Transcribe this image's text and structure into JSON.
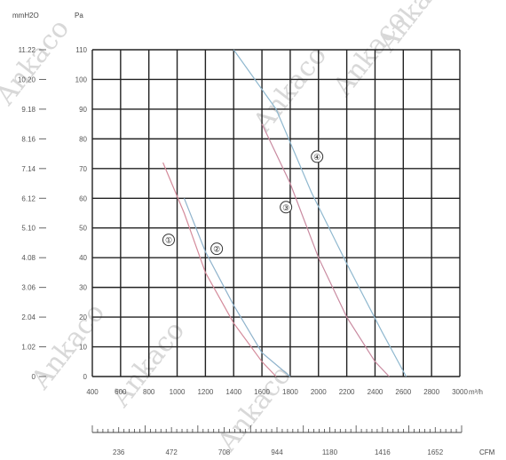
{
  "chart_data": {
    "type": "line",
    "left_axis_unit": "mmH2O",
    "left_axis_ticks": [
      "0",
      "1.02",
      "2.04",
      "3.06",
      "4.08",
      "5.10",
      "6.12",
      "7.14",
      "8.16",
      "9.18",
      "10.20",
      "11.22"
    ],
    "right_axis_unit": "Pa",
    "y_ticks": [
      0,
      10,
      20,
      30,
      40,
      50,
      60,
      70,
      80,
      90,
      100,
      110
    ],
    "ylim": [
      0,
      110
    ],
    "x_unit": "m³/h",
    "x_ticks": [
      400,
      600,
      800,
      1000,
      1200,
      1400,
      1600,
      1800,
      2000,
      2200,
      2400,
      2600,
      2800,
      3000
    ],
    "xlim": [
      400,
      3000
    ],
    "x_tick_labels": [
      "400",
      "600",
      "800",
      "1000",
      "1200",
      "1400",
      "1600",
      "1800",
      "2000",
      "2200",
      "2400",
      "2600",
      "2800",
      "3000"
    ],
    "cfm_unit": "CFM",
    "cfm_ticks": [
      "236",
      "472",
      "708",
      "944",
      "1180",
      "1416",
      "1652"
    ],
    "cfm_values": [
      236,
      472,
      708,
      944,
      1180,
      1416,
      1652
    ],
    "watermark": "Ankaco",
    "series": [
      {
        "name": "①",
        "color": "#d48a9a",
        "label_at": [
          940,
          46
        ],
        "points": [
          [
            900,
            72
          ],
          [
            1050,
            55
          ],
          [
            1200,
            35
          ],
          [
            1400,
            18
          ],
          [
            1600,
            5
          ],
          [
            1700,
            0
          ]
        ]
      },
      {
        "name": "②",
        "color": "#8fb3cc",
        "label_at": [
          1280,
          43
        ],
        "points": [
          [
            1050,
            60
          ],
          [
            1200,
            42
          ],
          [
            1400,
            24
          ],
          [
            1600,
            8
          ],
          [
            1800,
            0
          ]
        ]
      },
      {
        "name": "③",
        "color": "#c98aa0",
        "label_at": [
          1770,
          57
        ],
        "points": [
          [
            1600,
            85
          ],
          [
            1800,
            65
          ],
          [
            2000,
            40
          ],
          [
            2200,
            20
          ],
          [
            2400,
            5
          ],
          [
            2500,
            0
          ]
        ]
      },
      {
        "name": "④",
        "color": "#8fb8cf",
        "label_at": [
          1990,
          74
        ],
        "points": [
          [
            1400,
            110
          ],
          [
            1700,
            90
          ],
          [
            1950,
            62
          ],
          [
            2200,
            38
          ],
          [
            2450,
            15
          ],
          [
            2620,
            0
          ]
        ]
      }
    ]
  }
}
